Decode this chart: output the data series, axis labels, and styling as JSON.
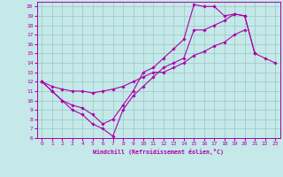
{
  "xlabel": "Windchill (Refroidissement éolien,°C)",
  "xlim": [
    -0.5,
    23.5
  ],
  "ylim": [
    6,
    20.5
  ],
  "xticks": [
    0,
    1,
    2,
    3,
    4,
    5,
    6,
    7,
    8,
    9,
    10,
    11,
    12,
    13,
    14,
    15,
    16,
    17,
    18,
    19,
    20,
    21,
    22,
    23
  ],
  "yticks": [
    6,
    7,
    8,
    9,
    10,
    11,
    12,
    13,
    14,
    15,
    16,
    17,
    18,
    19,
    20
  ],
  "background_color": "#c5e8e8",
  "line_color": "#aa00aa",
  "grid_color": "#a0cccc",
  "lines": [
    {
      "x": [
        0,
        1,
        2,
        3,
        4,
        5,
        6,
        7,
        8,
        9,
        10,
        11,
        12,
        13,
        14,
        15,
        16,
        17,
        18,
        19,
        20,
        21,
        22,
        23
      ],
      "y": [
        12,
        11,
        10,
        9,
        8.5,
        7.5,
        7,
        6.2,
        9,
        10.5,
        11.5,
        12.5,
        13.5,
        14,
        14.5,
        17.5,
        17.5,
        18,
        18.5,
        19.2,
        19,
        15,
        14.5,
        14
      ]
    },
    {
      "x": [
        0,
        1,
        2,
        3,
        4,
        5,
        6,
        7,
        8,
        9,
        10,
        11,
        12,
        13,
        14,
        15,
        16,
        17,
        18,
        19,
        20,
        21,
        22,
        23
      ],
      "y": [
        12,
        11,
        10,
        9.5,
        9.2,
        8.5,
        7.5,
        8,
        9.5,
        11,
        13,
        13.5,
        14.5,
        15.5,
        16.5,
        20.2,
        20.0,
        20.0,
        19.0,
        19.2,
        19.0,
        15,
        null,
        null
      ]
    },
    {
      "x": [
        0,
        1,
        2,
        3,
        4,
        5,
        6,
        7,
        8,
        9,
        10,
        11,
        12,
        13,
        14,
        15,
        16,
        17,
        18,
        19,
        20,
        21,
        22,
        23
      ],
      "y": [
        12,
        11.5,
        11.2,
        11.0,
        11.0,
        10.8,
        11,
        11.2,
        11.5,
        12,
        12.5,
        13,
        13,
        13.5,
        14,
        14.8,
        15.2,
        15.8,
        16.2,
        17,
        17.5,
        null,
        null,
        null
      ]
    }
  ]
}
